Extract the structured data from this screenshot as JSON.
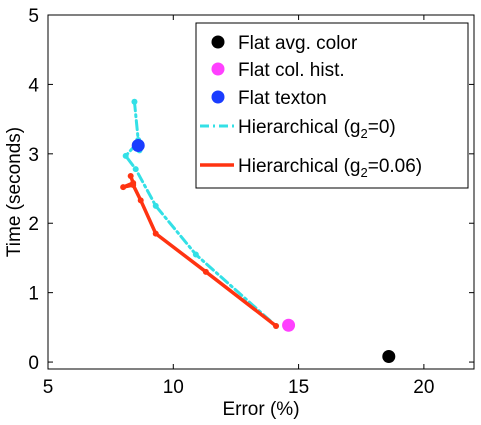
{
  "chart_data": {
    "type": "line",
    "title": "",
    "xlabel": "Error (%)",
    "ylabel": "Time (seconds)",
    "xlim": [
      5,
      22
    ],
    "ylim": [
      -0.1,
      5
    ],
    "xticks": [
      5,
      10,
      15,
      20
    ],
    "yticks": [
      0,
      1,
      2,
      3,
      4,
      5
    ],
    "grid": false,
    "legend_position": "top-right",
    "points": [
      {
        "name": "Flat avg. color",
        "label": "Flat avg. color",
        "x": 18.6,
        "y": 0.08,
        "color": "#000000"
      },
      {
        "name": "Flat col. hist.",
        "label": "Flat col. hist.",
        "x": 14.6,
        "y": 0.53,
        "color": "#ff40ff"
      },
      {
        "name": "Flat texton",
        "label": "Flat texton",
        "x": 8.6,
        "y": 3.12,
        "color": "#1a3cff"
      }
    ],
    "lines": [
      {
        "name": "Hierarchical (g2=0)",
        "label_main": "Hierarchical (g",
        "label_sub": "2",
        "label_tail": "=0)",
        "color": "#33e0e6",
        "style": "dashdot",
        "x": [
          8.45,
          8.6,
          8.65,
          8.55,
          8.1,
          8.5,
          9.3,
          10.9,
          14.1
        ],
        "y": [
          3.75,
          3.2,
          3.05,
          3.15,
          2.97,
          2.78,
          2.25,
          1.55,
          0.52
        ]
      },
      {
        "name": "Hierarchical (g2=0.06)",
        "label_main": "Hierarchical (g",
        "label_sub": "2",
        "label_tail": "=0.06)",
        "color": "#ff3311",
        "style": "solid",
        "x": [
          8.3,
          8.4,
          8.0,
          8.4,
          8.7,
          9.3,
          11.3,
          14.1
        ],
        "y": [
          2.68,
          2.58,
          2.52,
          2.55,
          2.33,
          1.85,
          1.3,
          0.52
        ]
      }
    ]
  }
}
